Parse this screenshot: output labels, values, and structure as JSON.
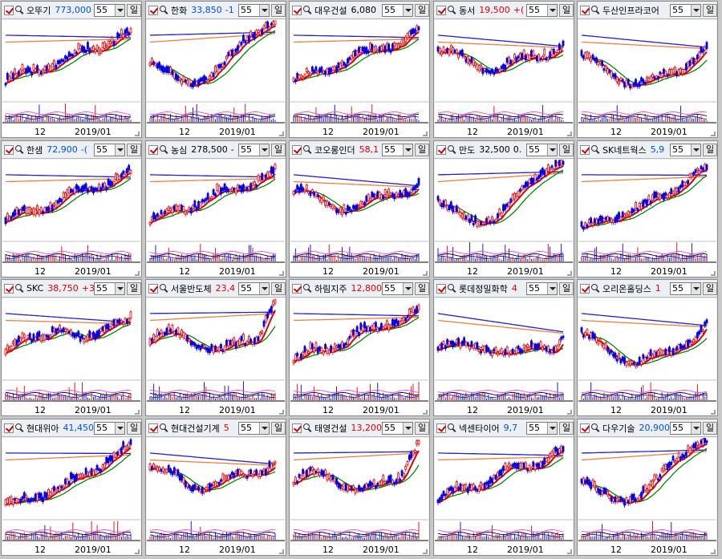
{
  "colors": {
    "up": "#e60000",
    "down": "#0000e6",
    "ma_fast": "#e00000",
    "ma_mid": "#008a00",
    "ma_slow": "#f08040",
    "ma_long": "#2020d0",
    "positive_price": "#e60000",
    "negative_price": "#0050e0"
  },
  "common": {
    "period_value": "55",
    "period_button": "일",
    "x_tick_left": "12",
    "x_tick_right": "2019/01"
  },
  "panels": [
    {
      "name": "오뚜기",
      "price": "773,000",
      "dir": "down",
      "shape": "rise"
    },
    {
      "name": "한화",
      "price": "33,850",
      "suffix": "-1",
      "dir": "down",
      "shape": "vrise"
    },
    {
      "name": "대우건설",
      "price": "6,080",
      "dir": "flat",
      "shape": "rise"
    },
    {
      "name": "동서",
      "price": "19,500",
      "suffix": "+(",
      "dir": "up",
      "shape": "dipflat"
    },
    {
      "name": "두산인프라코어",
      "price": "",
      "dir": "flat",
      "shape": "ushape"
    },
    {
      "name": "한샘",
      "price": "72,900",
      "suffix": "-(",
      "dir": "down",
      "shape": "rise"
    },
    {
      "name": "농심",
      "price": "278,500",
      "suffix": "-",
      "dir": "flat",
      "shape": "rise"
    },
    {
      "name": "코오롱인더",
      "price": "58,1",
      "dir": "up",
      "shape": "dipflat"
    },
    {
      "name": "만도",
      "price": "32,500",
      "suffix": "0.",
      "dir": "flat",
      "shape": "vrise"
    },
    {
      "name": "SK네트웍스",
      "price": "5,9",
      "dir": "down",
      "shape": "steep"
    },
    {
      "name": "SKC",
      "price": "38,750",
      "suffix": "+3",
      "dir": "up",
      "shape": "hump"
    },
    {
      "name": "서울반도체",
      "price": "23,4",
      "dir": "up",
      "shape": "spike"
    },
    {
      "name": "하림지주",
      "price": "12,800",
      "dir": "up",
      "shape": "rise"
    },
    {
      "name": "롯데정밀화학",
      "price": "4",
      "dir": "up",
      "shape": "flat"
    },
    {
      "name": "오리온홀딩스",
      "price": "1",
      "dir": "up",
      "shape": "ushape"
    },
    {
      "name": "현대위아",
      "price": "41,450",
      "dir": "down",
      "shape": "steep"
    },
    {
      "name": "현대건설기계",
      "price": "5",
      "dir": "up",
      "shape": "dipflat"
    },
    {
      "name": "태영건설",
      "price": "13,200",
      "dir": "up",
      "shape": "spike"
    },
    {
      "name": "넥센타이어",
      "price": "9,7",
      "dir": "down",
      "shape": "rise"
    },
    {
      "name": "다우기술",
      "price": "20,900",
      "dir": "down",
      "shape": "vrise"
    }
  ]
}
